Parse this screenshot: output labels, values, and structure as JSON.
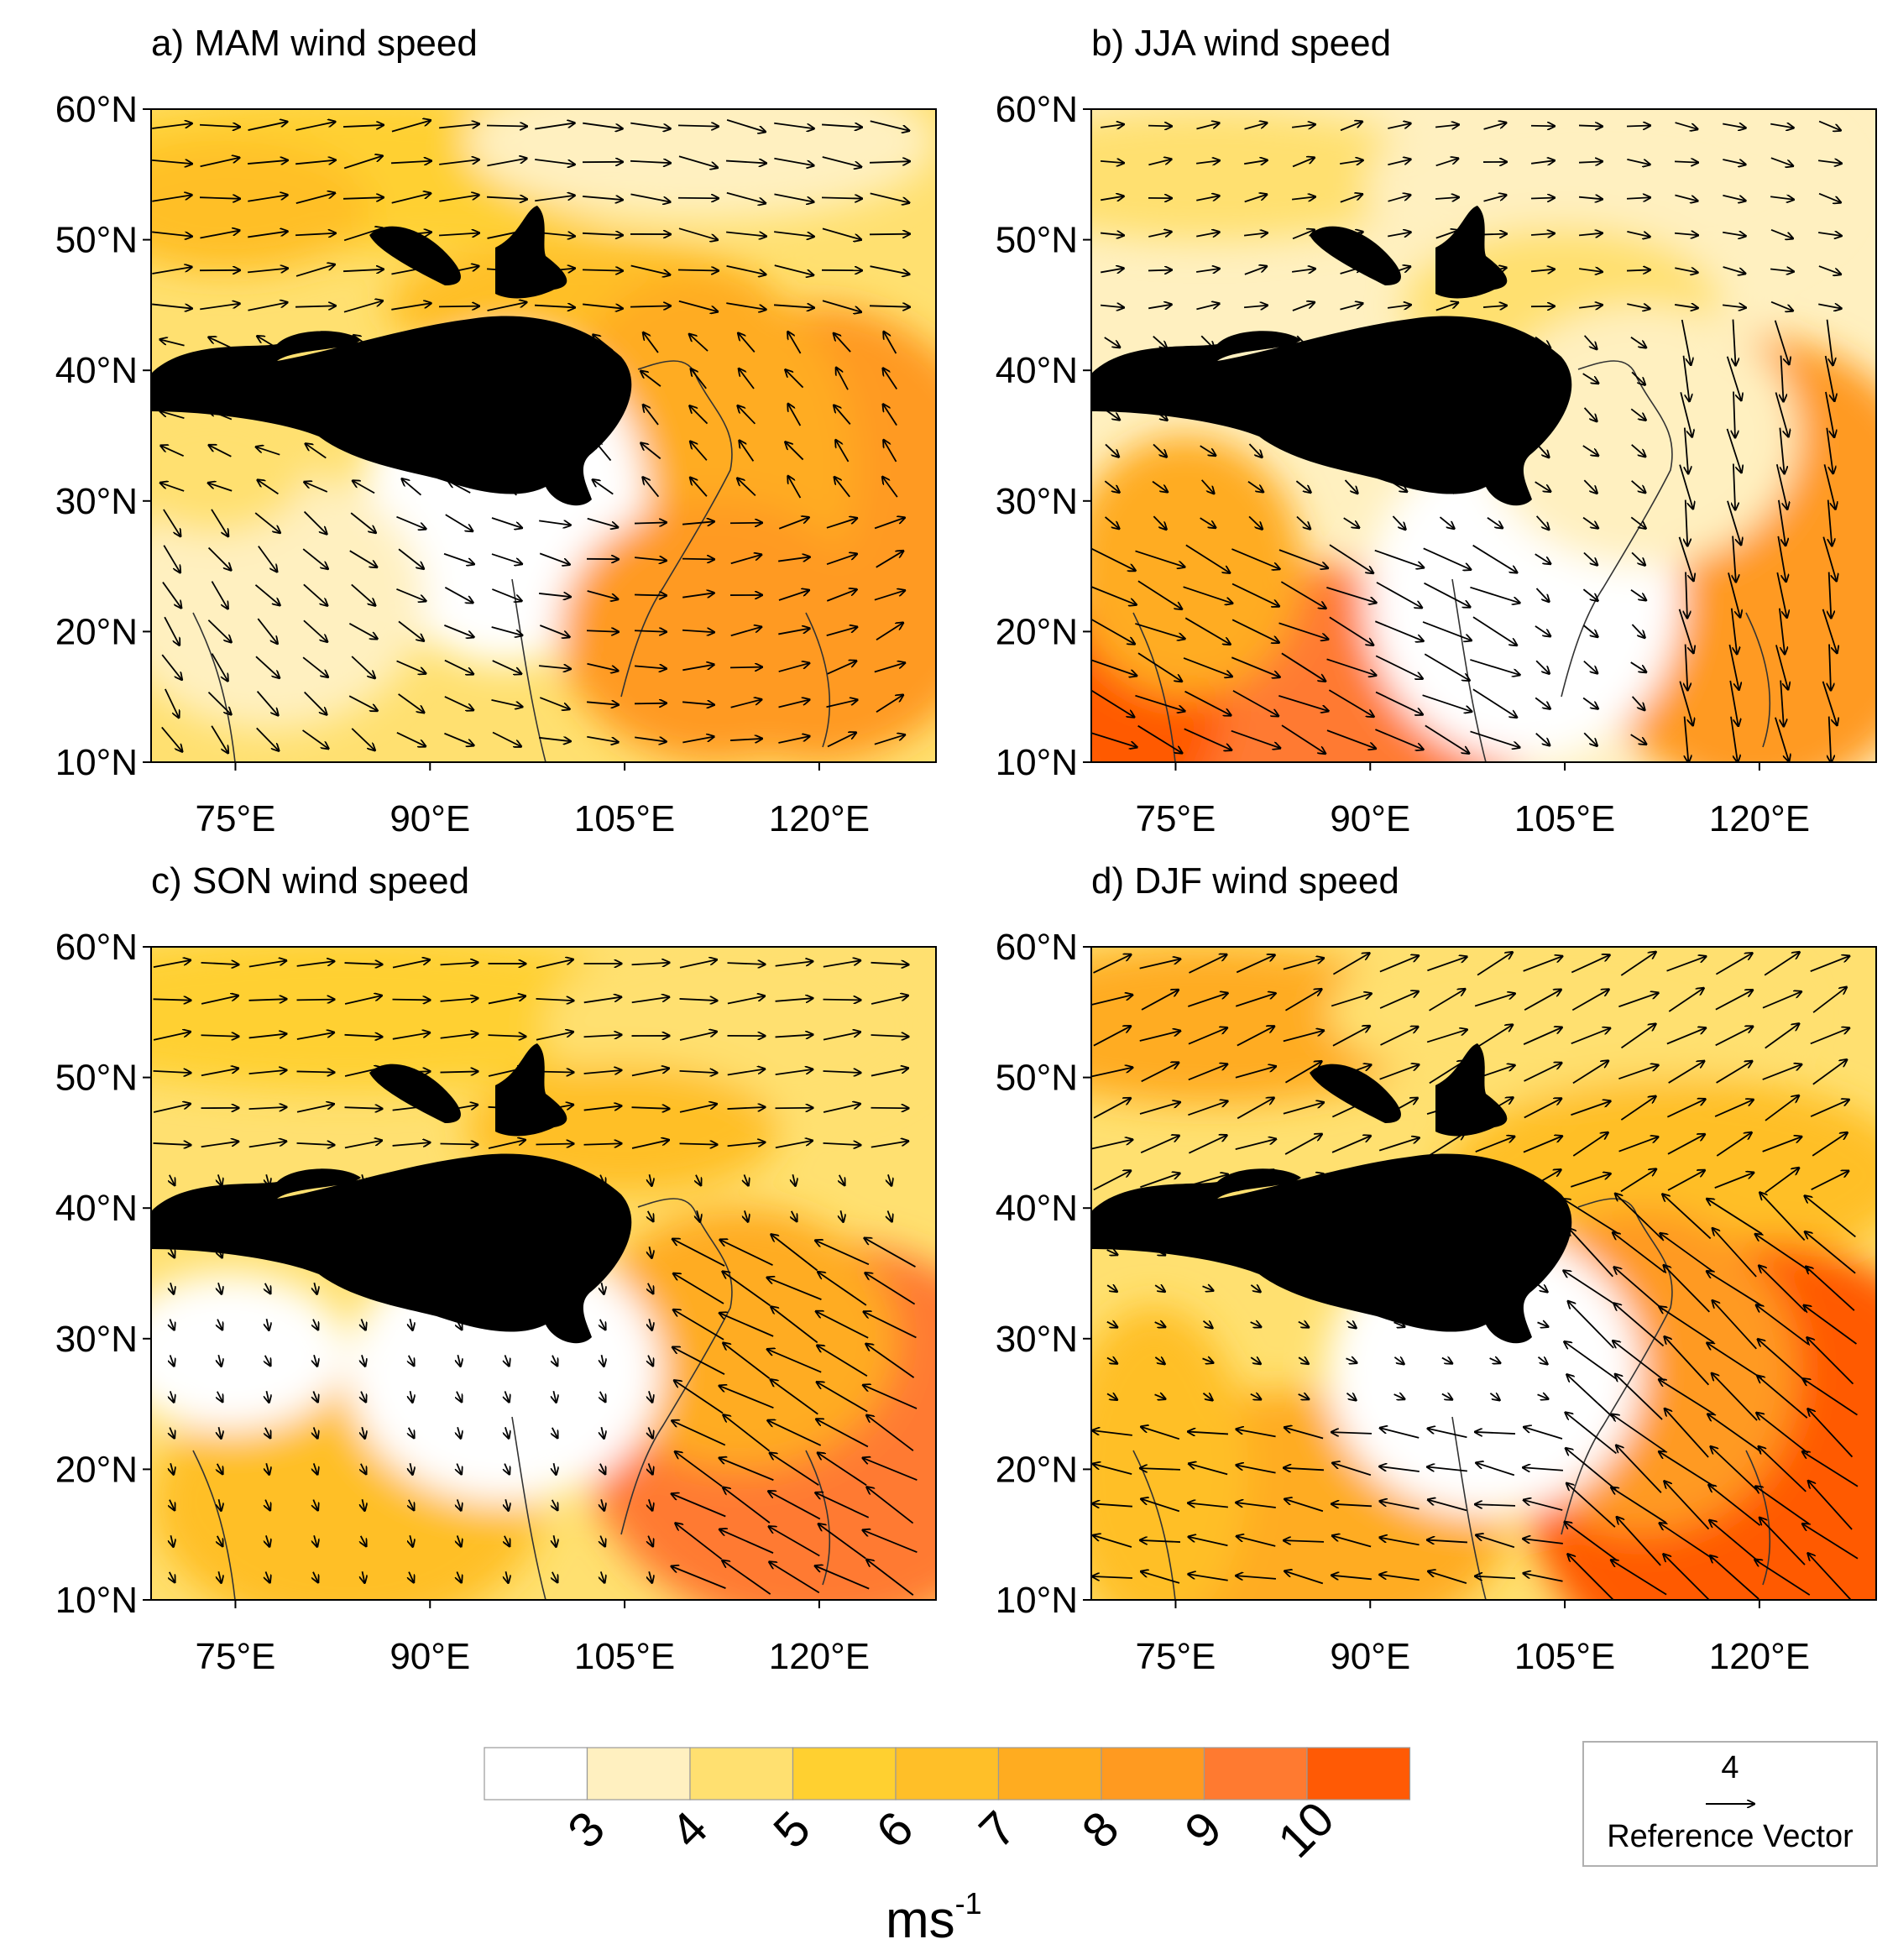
{
  "panels": [
    {
      "id": "a",
      "title": "a) MAM wind speed",
      "season": "MAM"
    },
    {
      "id": "b",
      "title": "b) JJA wind speed",
      "season": "JJA"
    },
    {
      "id": "c",
      "title": "c) SON wind speed",
      "season": "SON"
    },
    {
      "id": "d",
      "title": "d) DJF wind speed",
      "season": "DJF"
    }
  ],
  "axes": {
    "lat_ticks": [
      "60°N",
      "50°N",
      "40°N",
      "30°N",
      "20°N",
      "10°N"
    ],
    "lon_ticks": [
      "75°E",
      "90°E",
      "105°E",
      "120°E"
    ],
    "lat_values": [
      60,
      50,
      40,
      30,
      20,
      10
    ],
    "lon_values": [
      75,
      90,
      105,
      120
    ],
    "lat_range": [
      10,
      60
    ],
    "lon_range": [
      68.5,
      129
    ]
  },
  "colorbar": {
    "labels": [
      "3",
      "4",
      "5",
      "6",
      "7",
      "8",
      "9",
      "10"
    ],
    "colors": [
      "#ffffff",
      "#fff0c0",
      "#ffe070",
      "#ffd030",
      "#ffbf28",
      "#ffac20",
      "#ff9a20",
      "#ff7a30",
      "#ff5a05"
    ],
    "unit": "ms",
    "unit_exp": "-1"
  },
  "reference_vector": {
    "value": "4",
    "label": "Reference Vector"
  },
  "colors": {
    "terrain_mask": "#000000"
  }
}
